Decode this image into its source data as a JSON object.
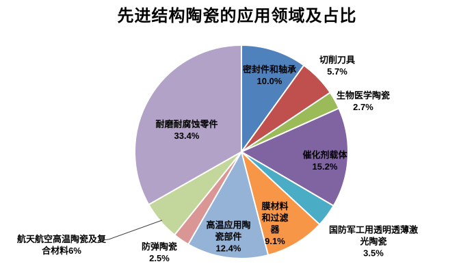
{
  "title": "先进结构陶瓷的应用领域及占比",
  "chart_data": {
    "type": "pie",
    "title": "先进结构陶瓷的应用领域及占比",
    "legend_position": "none",
    "start_angle_deg": 0,
    "direction": "clockwise",
    "unit": "percent",
    "categories": [
      "密封件和轴承",
      "切削刀具",
      "生物医学陶瓷",
      "催化剂载体",
      "国防军工用透明透薄激光陶瓷",
      "膜材料和过滤器",
      "高温应用陶瓷部件",
      "防弹陶瓷",
      "航天航空高温陶瓷及复合材料",
      "耐磨耐腐蚀零件"
    ],
    "values": [
      10.0,
      5.7,
      2.7,
      15.2,
      3.5,
      9.1,
      12.4,
      2.5,
      6.0,
      33.4
    ],
    "slices": [
      {
        "label": "密封件和轴承",
        "value": 10.0,
        "pct_label": "10.0%",
        "color": "#4F81BD",
        "label_placement": "inside",
        "label_lines": [
          "密封件和轴承",
          "10.0%"
        ]
      },
      {
        "label": "切削刀具",
        "value": 5.7,
        "pct_label": "5.7%",
        "color": "#C0504D",
        "label_placement": "outside",
        "label_lines": [
          "切削刀具",
          "5.7%"
        ]
      },
      {
        "label": "生物医学陶瓷",
        "value": 2.7,
        "pct_label": "2.7%",
        "color": "#9BBB59",
        "label_placement": "outside",
        "label_lines": [
          "生物医学陶瓷",
          "2.7%"
        ]
      },
      {
        "label": "催化剂载体",
        "value": 15.2,
        "pct_label": "15.2%",
        "color": "#8064A2",
        "label_placement": "inside",
        "label_lines": [
          "催化剂载体",
          "15.2%"
        ]
      },
      {
        "label": "国防军工用透明透薄激光陶瓷",
        "value": 3.5,
        "pct_label": "3.5%",
        "color": "#4BACC6",
        "label_placement": "outside",
        "label_lines": [
          "国防军工用透明透薄激",
          "光陶瓷",
          "3.5%"
        ]
      },
      {
        "label": "膜材料和过滤器",
        "value": 9.1,
        "pct_label": "9.1%",
        "color": "#F79646",
        "label_placement": "inside",
        "label_lines": [
          "膜材料",
          "和过滤",
          "器",
          "9.1%"
        ]
      },
      {
        "label": "高温应用陶瓷部件",
        "value": 12.4,
        "pct_label": "12.4%",
        "color": "#95B3D7",
        "label_placement": "inside",
        "label_lines": [
          "高温应用陶",
          "瓷部件",
          "12.4%"
        ]
      },
      {
        "label": "防弹陶瓷",
        "value": 2.5,
        "pct_label": "2.5%",
        "color": "#D99694",
        "label_placement": "outside",
        "label_lines": [
          "防弹陶瓷",
          "2.5%"
        ]
      },
      {
        "label": "航天航空高温陶瓷及复合材料",
        "value": 6.0,
        "pct_label": "6%",
        "color": "#C3D69B",
        "label_placement": "outside",
        "label_lines": [
          "航天航空高温陶瓷及复",
          "合材料6%"
        ],
        "leader_line": true
      },
      {
        "label": "耐磨耐腐蚀零件",
        "value": 33.4,
        "pct_label": "33.4%",
        "color": "#B3A2C7",
        "label_placement": "inside",
        "label_lines": [
          "耐磨耐腐蚀零件",
          "33.4%"
        ]
      }
    ]
  }
}
